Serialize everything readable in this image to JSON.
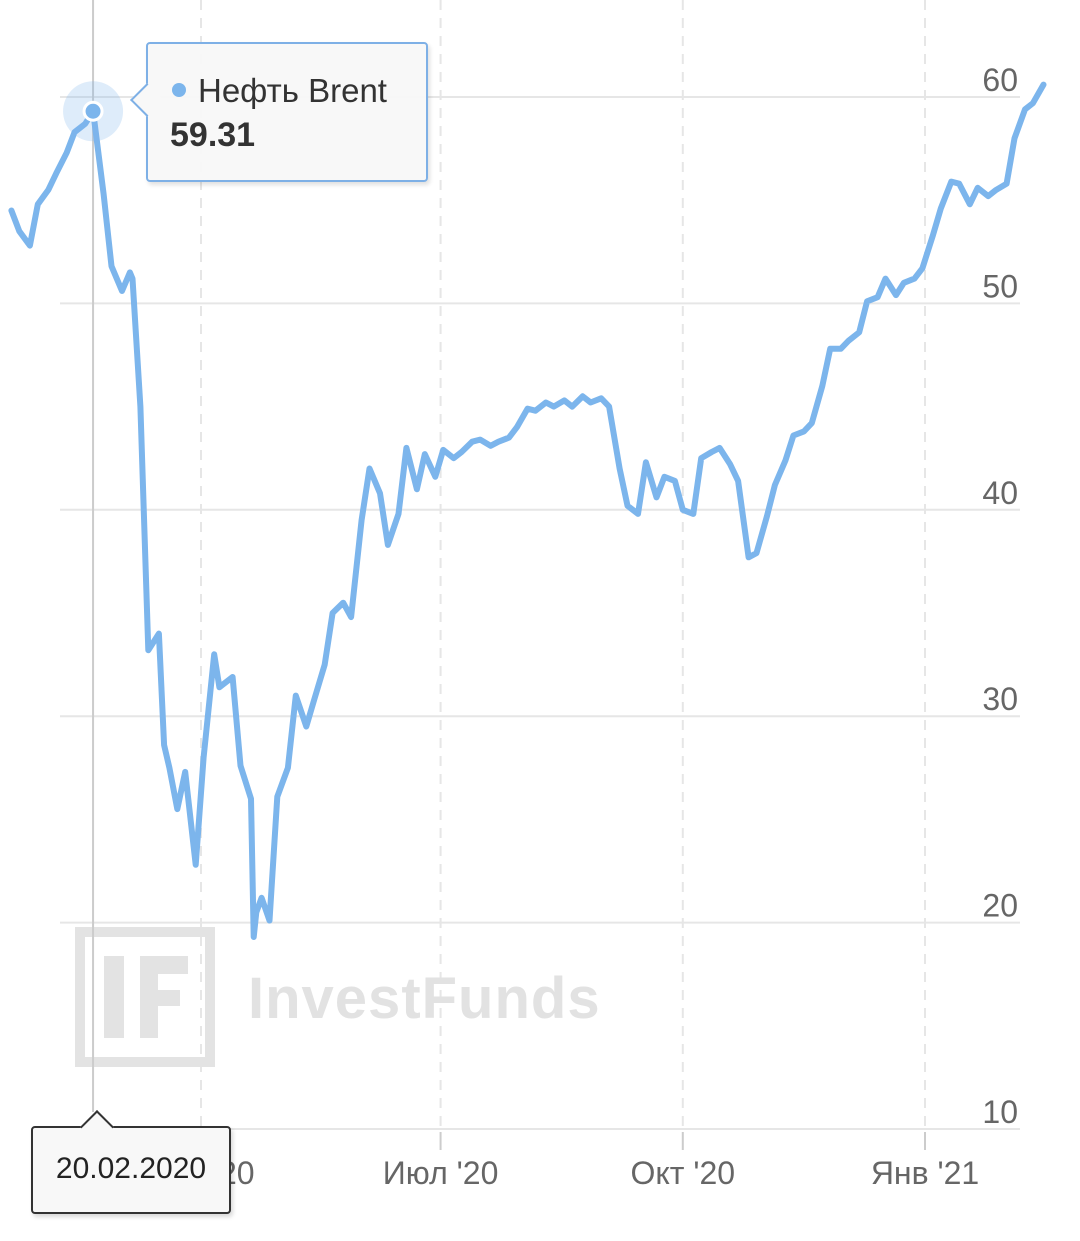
{
  "tooltip": {
    "series_name": "Нефть Brent",
    "value": "59.31"
  },
  "crosshair_date": "20.02.2020",
  "watermark": {
    "text": "InvestFunds"
  },
  "colors": {
    "line": "#7cb5ec",
    "grid": "#e6e6e6",
    "tooltip_border": "#7eb0e6",
    "text": "#666666"
  },
  "chart_data": {
    "type": "line",
    "title": "",
    "xlabel": "",
    "ylabel": "",
    "ylim": [
      10,
      62
    ],
    "y_ticks": [
      10,
      20,
      30,
      40,
      50,
      60
    ],
    "x_ticks": [
      {
        "label": "Апр '20",
        "date": "2020-04-01"
      },
      {
        "label": "Июл '20",
        "date": "2020-07-01"
      },
      {
        "label": "Окт '20",
        "date": "2020-10-01"
      },
      {
        "label": "Янв '21",
        "date": "2021-01-01"
      }
    ],
    "xlim": [
      "2020-01-20",
      "2021-02-15"
    ],
    "grid": true,
    "legend": "none",
    "highlight": {
      "date": "2020-02-20",
      "value": 59.31
    },
    "series": [
      {
        "name": "Нефть Brent",
        "x": [
          "2020-01-20",
          "2020-01-23",
          "2020-01-27",
          "2020-01-30",
          "2020-02-03",
          "2020-02-06",
          "2020-02-10",
          "2020-02-13",
          "2020-02-17",
          "2020-02-20",
          "2020-02-24",
          "2020-02-27",
          "2020-03-02",
          "2020-03-05",
          "2020-03-06",
          "2020-03-09",
          "2020-03-12",
          "2020-03-16",
          "2020-03-18",
          "2020-03-20",
          "2020-03-23",
          "2020-03-26",
          "2020-03-30",
          "2020-04-02",
          "2020-04-06",
          "2020-04-08",
          "2020-04-13",
          "2020-04-16",
          "2020-04-20",
          "2020-04-21",
          "2020-04-22",
          "2020-04-24",
          "2020-04-27",
          "2020-04-30",
          "2020-05-04",
          "2020-05-07",
          "2020-05-11",
          "2020-05-14",
          "2020-05-18",
          "2020-05-21",
          "2020-05-25",
          "2020-05-28",
          "2020-06-01",
          "2020-06-04",
          "2020-06-08",
          "2020-06-11",
          "2020-06-15",
          "2020-06-18",
          "2020-06-22",
          "2020-06-25",
          "2020-06-29",
          "2020-07-02",
          "2020-07-06",
          "2020-07-09",
          "2020-07-13",
          "2020-07-16",
          "2020-07-20",
          "2020-07-23",
          "2020-07-27",
          "2020-07-30",
          "2020-08-03",
          "2020-08-06",
          "2020-08-10",
          "2020-08-13",
          "2020-08-17",
          "2020-08-20",
          "2020-08-24",
          "2020-08-27",
          "2020-08-31",
          "2020-09-03",
          "2020-09-07",
          "2020-09-10",
          "2020-09-14",
          "2020-09-17",
          "2020-09-21",
          "2020-09-24",
          "2020-09-28",
          "2020-10-01",
          "2020-10-05",
          "2020-10-08",
          "2020-10-12",
          "2020-10-15",
          "2020-10-19",
          "2020-10-22",
          "2020-10-26",
          "2020-10-29",
          "2020-11-02",
          "2020-11-05",
          "2020-11-09",
          "2020-11-12",
          "2020-11-16",
          "2020-11-19",
          "2020-11-23",
          "2020-11-26",
          "2020-11-30",
          "2020-12-03",
          "2020-12-07",
          "2020-12-10",
          "2020-12-14",
          "2020-12-17",
          "2020-12-21",
          "2020-12-24",
          "2020-12-28",
          "2020-12-31",
          "2021-01-04",
          "2021-01-07",
          "2021-01-11",
          "2021-01-14",
          "2021-01-18",
          "2021-01-21",
          "2021-01-25",
          "2021-01-28",
          "2021-02-01",
          "2021-02-04",
          "2021-02-08",
          "2021-02-11",
          "2021-02-15"
        ],
        "values": [
          54.5,
          53.5,
          52.8,
          54.8,
          55.5,
          56.3,
          57.3,
          58.3,
          58.7,
          59.31,
          55.3,
          51.8,
          50.6,
          51.5,
          51.2,
          45.0,
          33.2,
          34.0,
          28.6,
          27.5,
          25.5,
          27.3,
          22.8,
          28.0,
          33.0,
          31.4,
          31.9,
          27.6,
          26.0,
          19.3,
          20.5,
          21.2,
          20.1,
          26.1,
          27.5,
          31.0,
          29.5,
          30.8,
          32.5,
          35.0,
          35.5,
          34.8,
          39.5,
          42.0,
          40.8,
          38.3,
          39.8,
          43.0,
          41.0,
          42.7,
          41.6,
          42.9,
          42.5,
          42.8,
          43.3,
          43.4,
          43.1,
          43.3,
          43.5,
          44.0,
          44.9,
          44.8,
          45.2,
          45.0,
          45.3,
          45.0,
          45.5,
          45.2,
          45.4,
          45.0,
          42.0,
          40.2,
          39.8,
          42.3,
          40.6,
          41.6,
          41.4,
          40.0,
          39.8,
          42.5,
          42.8,
          43.0,
          42.2,
          41.4,
          37.7,
          37.9,
          39.7,
          41.2,
          42.4,
          43.6,
          43.8,
          44.2,
          46.0,
          47.8,
          47.8,
          48.2,
          48.6,
          50.1,
          50.3,
          51.2,
          50.4,
          51.0,
          51.2,
          51.7,
          53.3,
          54.6,
          55.9,
          55.8,
          54.8,
          55.6,
          55.2,
          55.5,
          55.8,
          58.0,
          59.4,
          59.7,
          60.6
        ]
      }
    ]
  }
}
